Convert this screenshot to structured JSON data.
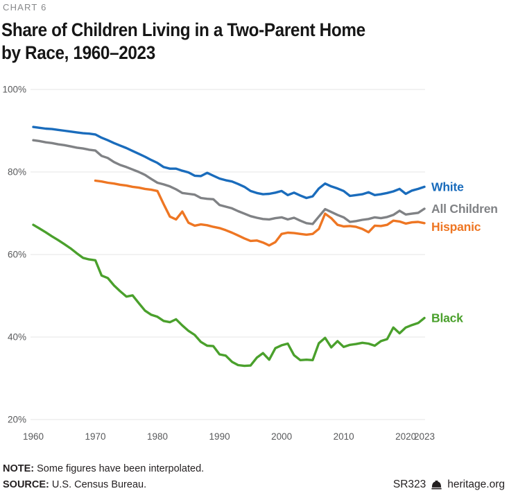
{
  "header": {
    "kicker": "CHART 6",
    "title_line1": "Share of Children Living in a Two-Parent Home",
    "title_line2": "by Race, 1960–2023"
  },
  "footer": {
    "note_label": "NOTE:",
    "note_text": " Some figures have been interpolated.",
    "source_label": "SOURCE:",
    "source_text": " U.S. Census Bureau.",
    "report_id": "SR323",
    "brand": "heritage.org"
  },
  "colors": {
    "grid": "#e6e6e6",
    "axis_text": "#58595b",
    "white_series": "#1a6cbc",
    "all_children_series": "#808285",
    "hispanic_series": "#ee7623",
    "black_series": "#4aa02c"
  },
  "chart_data": {
    "type": "line",
    "title": "Share of Children Living in a Two-Parent Home by Race, 1960–2023",
    "xlabel": "",
    "ylabel": "",
    "ylim": [
      20,
      100
    ],
    "xlim": [
      1960,
      2023
    ],
    "grid": "horizontal",
    "legend_position": "right-of-line-ends",
    "y_ticks": [
      {
        "value": 100,
        "label": "100%"
      },
      {
        "value": 80,
        "label": "80%"
      },
      {
        "value": 60,
        "label": "60%"
      },
      {
        "value": 40,
        "label": "40%"
      },
      {
        "value": 20,
        "label": "20%"
      }
    ],
    "x_ticks": [
      {
        "value": 1960,
        "label": "1960"
      },
      {
        "value": 1970,
        "label": "1970"
      },
      {
        "value": 1980,
        "label": "1980"
      },
      {
        "value": 1990,
        "label": "1990"
      },
      {
        "value": 2000,
        "label": "2000"
      },
      {
        "value": 2010,
        "label": "2010"
      },
      {
        "value": 2020,
        "label": "2020"
      },
      {
        "value": 2023,
        "label": "2023"
      }
    ],
    "series": [
      {
        "name": "Black",
        "color": "#4aa02c",
        "start_year": 1960,
        "label_dy": 0,
        "values": [
          67.2,
          66.3,
          65.4,
          64.4,
          63.5,
          62.5,
          61.5,
          60.3,
          59.2,
          58.8,
          58.6,
          54.9,
          54.3,
          52.5,
          51.1,
          49.8,
          50.1,
          48.2,
          46.4,
          45.4,
          44.9,
          43.9,
          43.6,
          44.3,
          42.8,
          41.5,
          40.5,
          38.8,
          37.9,
          37.8,
          35.8,
          35.5,
          34.0,
          33.2,
          33.0,
          33.1,
          35.0,
          36.1,
          34.5,
          37.3,
          38.0,
          38.4,
          35.6,
          34.4,
          34.5,
          34.4,
          38.5,
          39.8,
          37.5,
          39.0,
          37.6,
          38.1,
          38.3,
          38.6,
          38.4,
          37.9,
          39.0,
          39.5,
          42.3,
          40.9,
          42.3,
          42.9,
          43.4,
          44.6
        ]
      },
      {
        "name": "Hispanic",
        "color": "#ee7623",
        "start_year": 1970,
        "label_dy": 5,
        "values": [
          77.9,
          77.7,
          77.4,
          77.2,
          76.9,
          76.7,
          76.4,
          76.2,
          75.9,
          75.7,
          75.4,
          72.2,
          69.2,
          68.5,
          70.4,
          67.7,
          67.0,
          67.3,
          67.1,
          66.7,
          66.4,
          65.9,
          65.3,
          64.6,
          63.9,
          63.3,
          63.4,
          62.9,
          62.2,
          63.0,
          65.0,
          65.3,
          65.2,
          65.0,
          64.8,
          65.0,
          66.2,
          69.9,
          68.8,
          67.2,
          66.8,
          66.9,
          66.7,
          66.2,
          65.4,
          67.0,
          66.9,
          67.2,
          68.2,
          68.0,
          67.5,
          67.8,
          67.9,
          67.6
        ]
      },
      {
        "name": "All Children",
        "color": "#808285",
        "start_year": 1960,
        "label_dy": 0,
        "values": [
          87.7,
          87.5,
          87.2,
          87.0,
          86.7,
          86.5,
          86.2,
          85.9,
          85.7,
          85.4,
          85.2,
          83.9,
          83.4,
          82.4,
          81.7,
          81.2,
          80.6,
          80.0,
          79.3,
          78.3,
          77.4,
          77.0,
          76.5,
          75.8,
          74.9,
          74.7,
          74.5,
          73.7,
          73.5,
          73.4,
          72.0,
          71.6,
          71.2,
          70.5,
          69.9,
          69.3,
          68.9,
          68.6,
          68.5,
          68.8,
          69.0,
          68.5,
          68.9,
          68.2,
          67.6,
          67.4,
          69.2,
          71.0,
          70.3,
          69.6,
          69.0,
          67.9,
          68.1,
          68.4,
          68.6,
          69.0,
          68.8,
          69.1,
          69.6,
          70.6,
          69.7,
          69.9,
          70.1,
          71.1
        ]
      },
      {
        "name": "White",
        "color": "#1a6cbc",
        "start_year": 1960,
        "label_dy": 0,
        "values": [
          90.9,
          90.7,
          90.5,
          90.4,
          90.2,
          90.0,
          89.8,
          89.6,
          89.4,
          89.3,
          89.1,
          88.3,
          87.7,
          87.0,
          86.4,
          85.8,
          85.1,
          84.4,
          83.7,
          82.9,
          82.2,
          81.2,
          80.8,
          80.8,
          80.3,
          79.9,
          79.1,
          79.0,
          79.8,
          79.1,
          78.4,
          78.0,
          77.7,
          77.1,
          76.4,
          75.4,
          74.9,
          74.6,
          74.7,
          75.0,
          75.4,
          74.4,
          75.0,
          74.3,
          73.7,
          74.1,
          76.0,
          77.2,
          76.5,
          76.0,
          75.4,
          74.2,
          74.4,
          74.6,
          75.1,
          74.4,
          74.6,
          74.9,
          75.3,
          75.9,
          74.7,
          75.5,
          75.9,
          76.4
        ]
      }
    ]
  }
}
